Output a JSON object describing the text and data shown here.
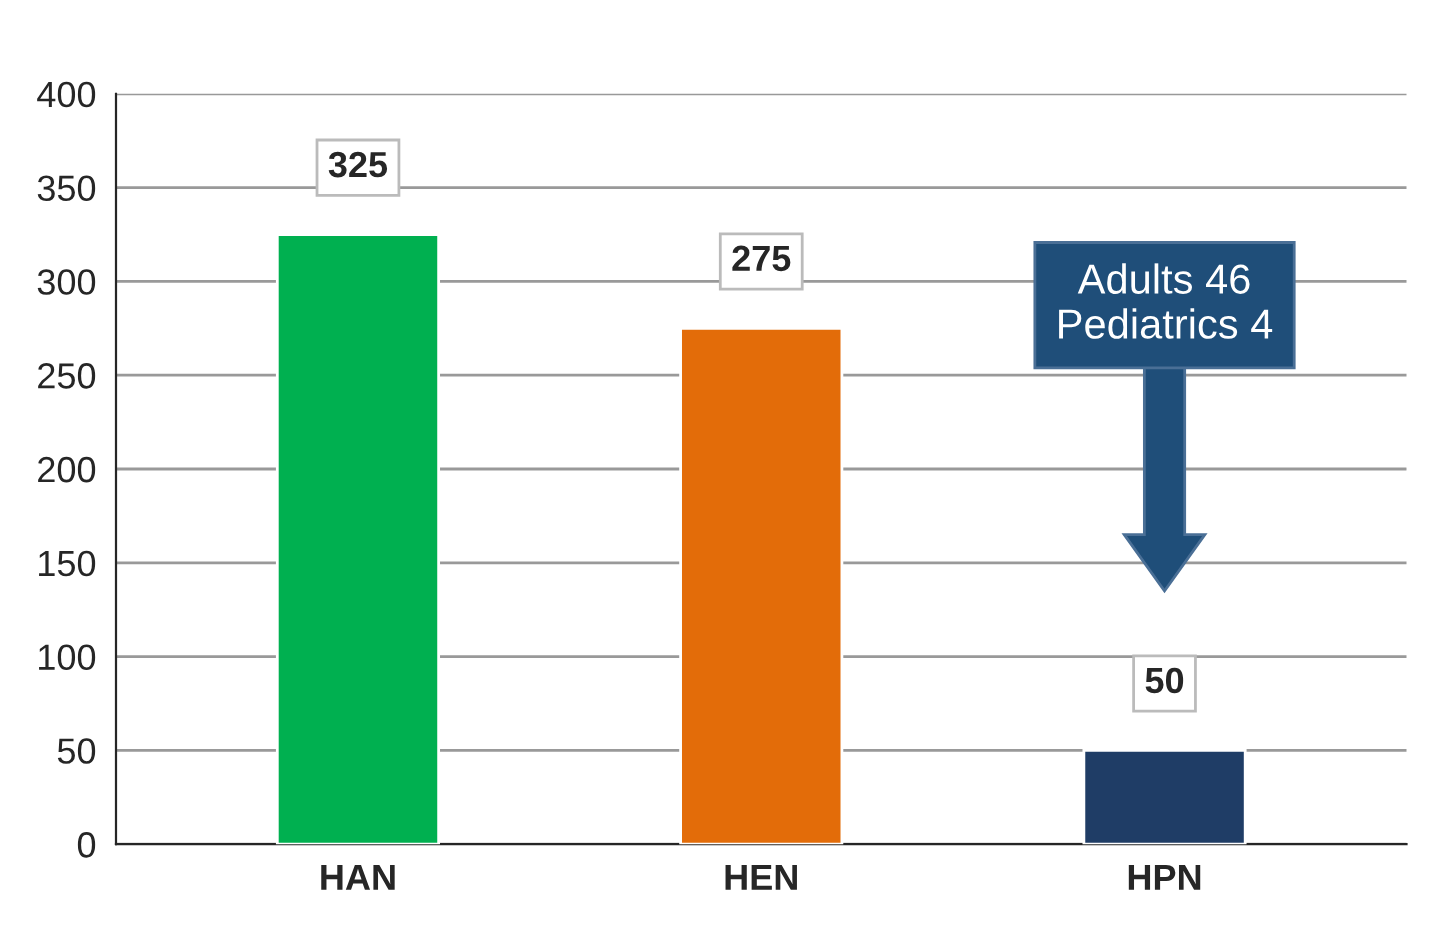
{
  "chart_data": {
    "type": "bar",
    "categories": [
      "HAN",
      "HEN",
      "HPN"
    ],
    "values": [
      325,
      275,
      50
    ],
    "colors": [
      "#00b050",
      "#e36c09",
      "#1f3d66"
    ],
    "ylim": [
      0,
      400
    ],
    "yticks": [
      0,
      50,
      100,
      150,
      200,
      250,
      300,
      350,
      400
    ],
    "grid": "y",
    "data_labels": true,
    "annotations": [
      "Adults 46\nPediatrics 4"
    ]
  }
}
